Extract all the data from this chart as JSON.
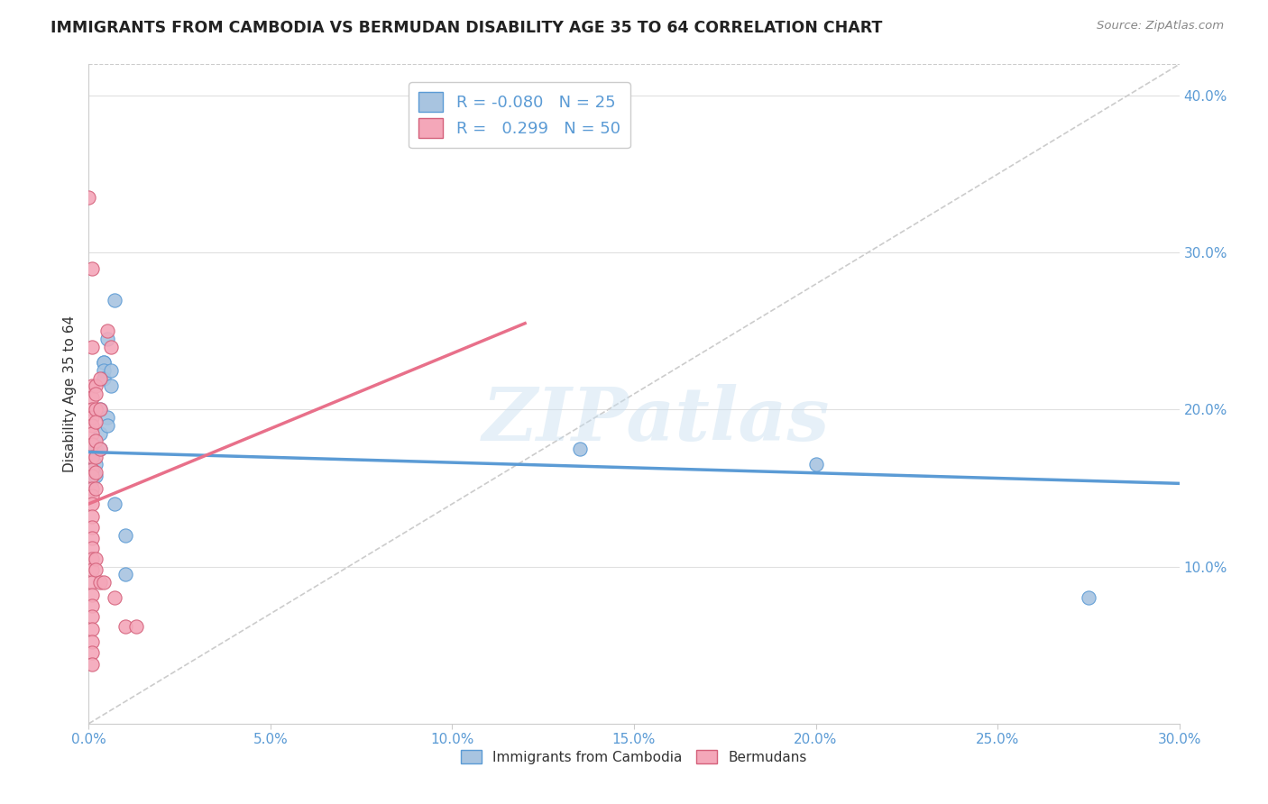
{
  "title": "IMMIGRANTS FROM CAMBODIA VS BERMUDAN DISABILITY AGE 35 TO 64 CORRELATION CHART",
  "source": "Source: ZipAtlas.com",
  "ylabel_label": "Disability Age 35 to 64",
  "legend_label1": "Immigrants from Cambodia",
  "legend_label2": "Bermudans",
  "R1": -0.08,
  "N1": 25,
  "R2": 0.299,
  "N2": 50,
  "xlim": [
    0.0,
    0.3
  ],
  "ylim": [
    0.0,
    0.42
  ],
  "color_blue": "#a8c4e0",
  "color_pink": "#f4a7b9",
  "trendline1_color": "#5b9bd5",
  "trendline2_color": "#e8708a",
  "diag_color": "#cccccc",
  "watermark": "ZIPatlas",
  "xticks": [
    0.0,
    0.05,
    0.1,
    0.15,
    0.2,
    0.25,
    0.3
  ],
  "yticks_right": [
    0.1,
    0.2,
    0.3,
    0.4
  ],
  "blue_trendline": [
    [
      0.0,
      0.173
    ],
    [
      0.3,
      0.153
    ]
  ],
  "pink_trendline": [
    [
      0.0,
      0.14
    ],
    [
      0.12,
      0.255
    ]
  ],
  "blue_points": [
    [
      0.001,
      0.17
    ],
    [
      0.001,
      0.155
    ],
    [
      0.001,
      0.16
    ],
    [
      0.002,
      0.175
    ],
    [
      0.002,
      0.165
    ],
    [
      0.002,
      0.158
    ],
    [
      0.003,
      0.2
    ],
    [
      0.003,
      0.185
    ],
    [
      0.003,
      0.175
    ],
    [
      0.004,
      0.23
    ],
    [
      0.004,
      0.23
    ],
    [
      0.004,
      0.225
    ],
    [
      0.004,
      0.22
    ],
    [
      0.005,
      0.245
    ],
    [
      0.005,
      0.195
    ],
    [
      0.005,
      0.19
    ],
    [
      0.006,
      0.225
    ],
    [
      0.006,
      0.215
    ],
    [
      0.007,
      0.27
    ],
    [
      0.007,
      0.14
    ],
    [
      0.01,
      0.12
    ],
    [
      0.01,
      0.095
    ],
    [
      0.135,
      0.175
    ],
    [
      0.2,
      0.165
    ],
    [
      0.275,
      0.08
    ]
  ],
  "pink_points": [
    [
      0.0,
      0.335
    ],
    [
      0.001,
      0.29
    ],
    [
      0.001,
      0.24
    ],
    [
      0.001,
      0.215
    ],
    [
      0.001,
      0.208
    ],
    [
      0.001,
      0.2
    ],
    [
      0.001,
      0.195
    ],
    [
      0.001,
      0.19
    ],
    [
      0.001,
      0.185
    ],
    [
      0.001,
      0.178
    ],
    [
      0.001,
      0.17
    ],
    [
      0.001,
      0.162
    ],
    [
      0.001,
      0.158
    ],
    [
      0.001,
      0.15
    ],
    [
      0.001,
      0.145
    ],
    [
      0.001,
      0.14
    ],
    [
      0.001,
      0.132
    ],
    [
      0.001,
      0.125
    ],
    [
      0.001,
      0.118
    ],
    [
      0.001,
      0.112
    ],
    [
      0.001,
      0.105
    ],
    [
      0.001,
      0.098
    ],
    [
      0.001,
      0.09
    ],
    [
      0.001,
      0.082
    ],
    [
      0.001,
      0.075
    ],
    [
      0.001,
      0.068
    ],
    [
      0.001,
      0.06
    ],
    [
      0.001,
      0.052
    ],
    [
      0.001,
      0.045
    ],
    [
      0.001,
      0.038
    ],
    [
      0.002,
      0.215
    ],
    [
      0.002,
      0.21
    ],
    [
      0.002,
      0.2
    ],
    [
      0.002,
      0.192
    ],
    [
      0.002,
      0.18
    ],
    [
      0.002,
      0.17
    ],
    [
      0.002,
      0.16
    ],
    [
      0.002,
      0.15
    ],
    [
      0.002,
      0.105
    ],
    [
      0.002,
      0.098
    ],
    [
      0.003,
      0.22
    ],
    [
      0.003,
      0.2
    ],
    [
      0.003,
      0.175
    ],
    [
      0.003,
      0.09
    ],
    [
      0.004,
      0.09
    ],
    [
      0.005,
      0.25
    ],
    [
      0.006,
      0.24
    ],
    [
      0.007,
      0.08
    ],
    [
      0.01,
      0.062
    ],
    [
      0.013,
      0.062
    ]
  ]
}
